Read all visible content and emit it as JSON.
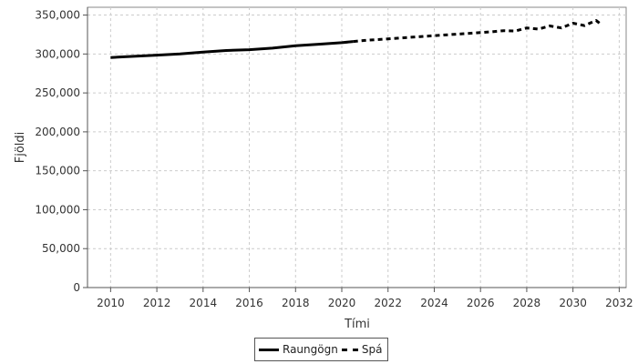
{
  "chart_data": {
    "type": "line",
    "xlabel": "Tími",
    "ylabel": "Fjöldi",
    "xlim": [
      2009.0,
      2032.3
    ],
    "ylim": [
      0,
      360000
    ],
    "x_ticks": [
      2010,
      2012,
      2014,
      2016,
      2018,
      2020,
      2022,
      2024,
      2026,
      2028,
      2030,
      2032
    ],
    "y_ticks": [
      0,
      50000,
      100000,
      150000,
      200000,
      250000,
      300000,
      350000
    ],
    "y_tick_labels": [
      "0",
      "50,000",
      "100,000",
      "150,000",
      "200,000",
      "250,000",
      "300,000",
      "350,000"
    ],
    "grid": true,
    "legend_position": "bottom-center",
    "series": [
      {
        "name": "Raungögn",
        "style": "solid",
        "color": "#000000",
        "x": [
          2010,
          2011,
          2012,
          2013,
          2014,
          2015,
          2016,
          2017,
          2018,
          2019,
          2020,
          2020.5
        ],
        "y": [
          295500,
          297000,
          298500,
          300000,
          302500,
          304500,
          305500,
          307500,
          310500,
          312500,
          314500,
          316000
        ]
      },
      {
        "name": "Spá",
        "style": "dashed",
        "color": "#000000",
        "x": [
          2020.5,
          2021,
          2022,
          2023,
          2024,
          2025,
          2026,
          2026.5,
          2027,
          2027.5,
          2028,
          2028.5,
          2029,
          2029.5,
          2030,
          2030.5,
          2031,
          2031.2
        ],
        "y": [
          316000,
          317500,
          319500,
          321500,
          323500,
          325500,
          327500,
          328500,
          330000,
          329500,
          333500,
          332000,
          336000,
          333500,
          339500,
          336500,
          343000,
          338500
        ]
      }
    ]
  }
}
